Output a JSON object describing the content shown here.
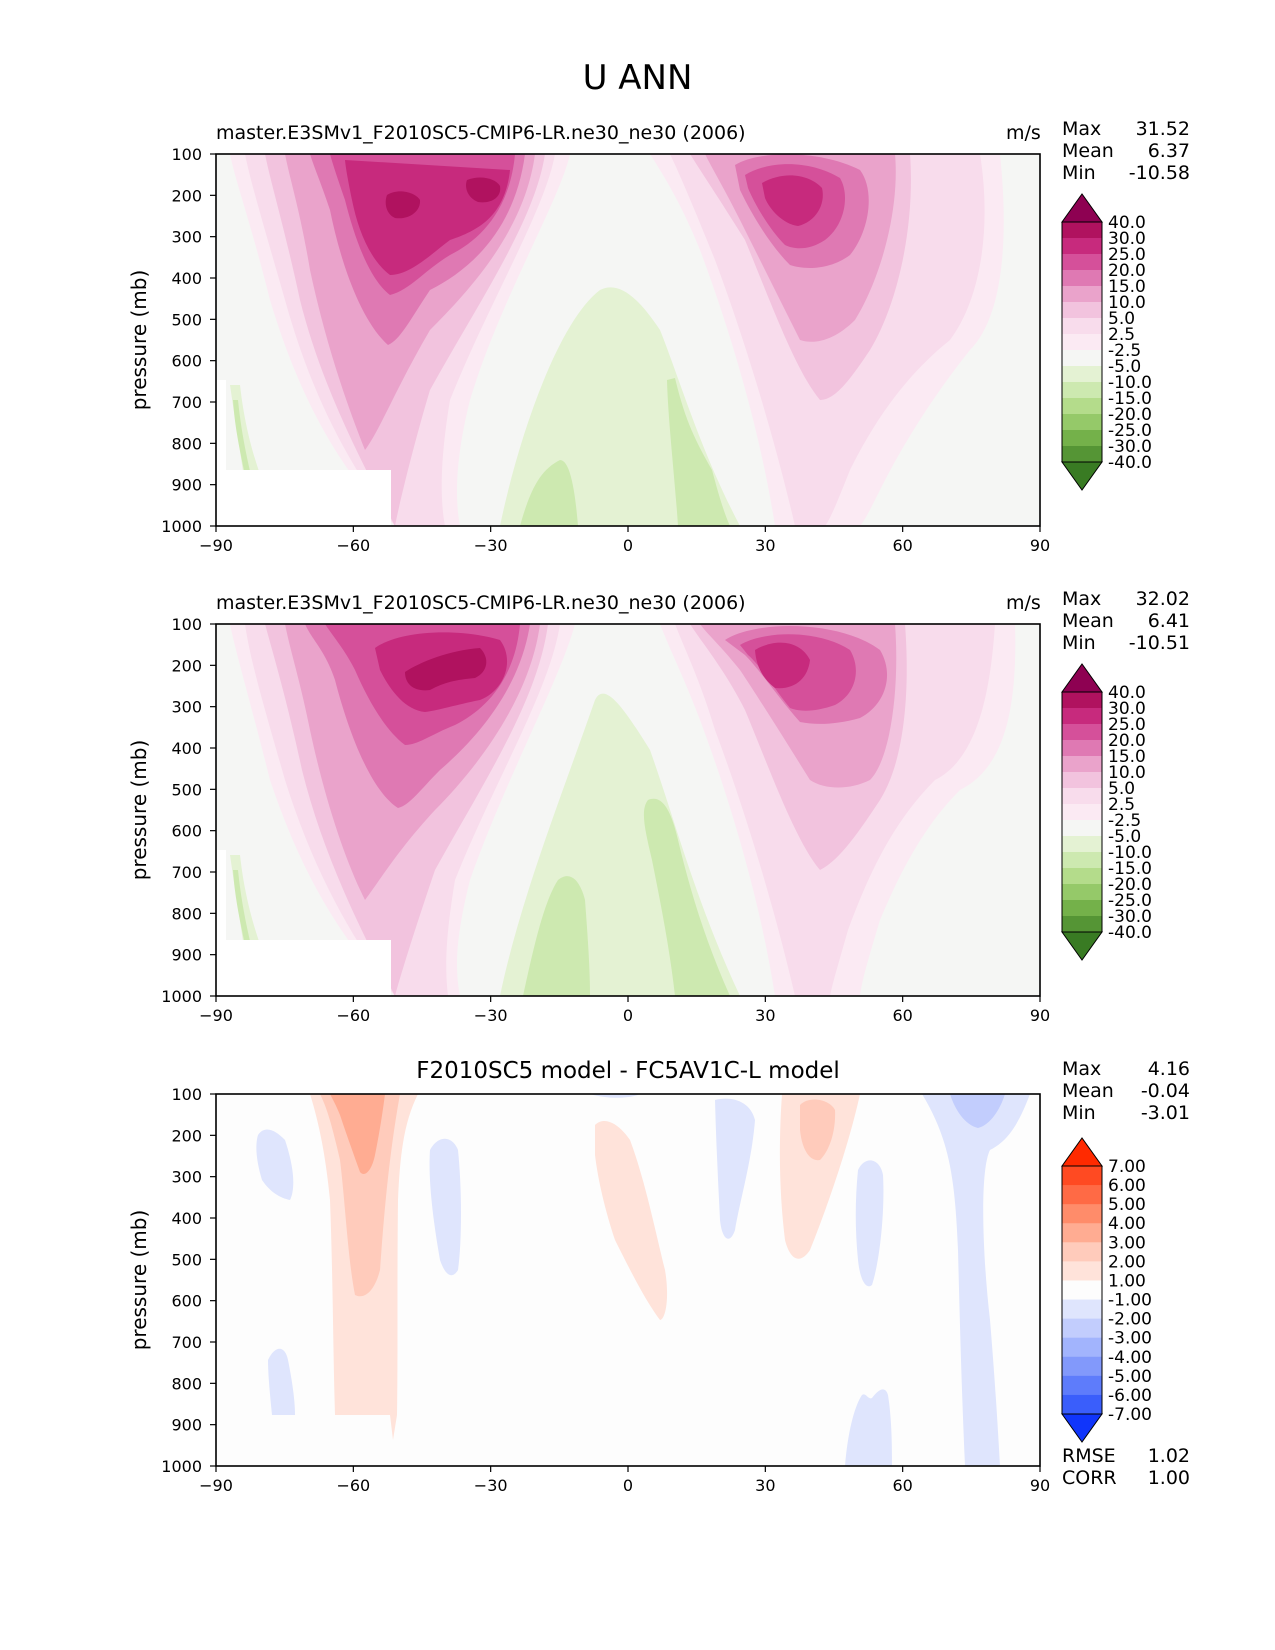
{
  "figure_title": "U ANN",
  "chart_data": [
    {
      "type": "contour",
      "title": "master.E3SMv1_F2010SC5-CMIP6-LR.ne30_ne30 (2006)",
      "units": "m/s",
      "ylabel": "pressure (mb)",
      "xlim": [
        -90,
        90
      ],
      "ylim": [
        1000,
        100
      ],
      "x_ticks": [
        "−90",
        "−60",
        "−30",
        "0",
        "30",
        "60",
        "90"
      ],
      "y_ticks": [
        "100",
        "200",
        "300",
        "400",
        "500",
        "600",
        "700",
        "800",
        "900",
        "1000"
      ],
      "stats": {
        "max_label": "Max",
        "max": "31.52",
        "mean_label": "Mean",
        "mean": "6.37",
        "min_label": "Min",
        "min": "-10.58"
      },
      "colorbar": {
        "levels": [
          "40.0",
          "30.0",
          "25.0",
          "20.0",
          "15.0",
          "10.0",
          "5.0",
          "2.5",
          "-2.5",
          "-5.0",
          "-10.0",
          "-15.0",
          "-20.0",
          "-25.0",
          "-30.0",
          "-40.0"
        ],
        "colors": [
          "#8e0152",
          "#b0125f",
          "#c72a7d",
          "#d5509a",
          "#df79b3",
          "#eaa3cb",
          "#f2c3de",
          "#f8dcec",
          "#fbeaf3",
          "#f5f6f4",
          "#e4f2d3",
          "#cde9b0",
          "#b4dc8b",
          "#95c969",
          "#74b14a",
          "#559535",
          "#397b23"
        ]
      },
      "jets": [
        {
          "lat": -48,
          "core_pressure": 220,
          "max": 31.5
        },
        {
          "lat": 37,
          "core_pressure": 230,
          "max": 29.0
        }
      ]
    },
    {
      "type": "contour",
      "title": "master.E3SMv1_F2010SC5-CMIP6-LR.ne30_ne30 (2006)",
      "units": "m/s",
      "ylabel": "pressure (mb)",
      "xlim": [
        -90,
        90
      ],
      "ylim": [
        1000,
        100
      ],
      "x_ticks": [
        "−90",
        "−60",
        "−30",
        "0",
        "30",
        "60",
        "90"
      ],
      "y_ticks": [
        "100",
        "200",
        "300",
        "400",
        "500",
        "600",
        "700",
        "800",
        "900",
        "1000"
      ],
      "stats": {
        "max_label": "Max",
        "max": "32.02",
        "mean_label": "Mean",
        "mean": "6.41",
        "min_label": "Min",
        "min": "-10.51"
      },
      "colorbar": {
        "levels": [
          "40.0",
          "30.0",
          "25.0",
          "20.0",
          "15.0",
          "10.0",
          "5.0",
          "2.5",
          "-2.5",
          "-5.0",
          "-10.0",
          "-15.0",
          "-20.0",
          "-25.0",
          "-30.0",
          "-40.0"
        ],
        "colors": [
          "#8e0152",
          "#b0125f",
          "#c72a7d",
          "#d5509a",
          "#df79b3",
          "#eaa3cb",
          "#f2c3de",
          "#f8dcec",
          "#fbeaf3",
          "#f5f6f4",
          "#e4f2d3",
          "#cde9b0",
          "#b4dc8b",
          "#95c969",
          "#74b14a",
          "#559535",
          "#397b23"
        ]
      },
      "jets": [
        {
          "lat": -46,
          "core_pressure": 210,
          "max": 32.0
        },
        {
          "lat": 34,
          "core_pressure": 220,
          "max": 29.5
        }
      ]
    },
    {
      "type": "contour",
      "title": "F2010SC5 model - FC5AV1C-L model",
      "units": "",
      "ylabel": "pressure (mb)",
      "xlim": [
        -90,
        90
      ],
      "ylim": [
        1000,
        100
      ],
      "x_ticks": [
        "−90",
        "−60",
        "−30",
        "0",
        "30",
        "60",
        "90"
      ],
      "y_ticks": [
        "100",
        "200",
        "300",
        "400",
        "500",
        "600",
        "700",
        "800",
        "900",
        "1000"
      ],
      "stats": {
        "max_label": "Max",
        "max": "4.16",
        "mean_label": "Mean",
        "mean": "-0.04",
        "min_label": "Min",
        "min": "-3.01"
      },
      "extra_stats": {
        "rmse_label": "RMSE",
        "rmse": "1.02",
        "corr_label": "CORR",
        "corr": "1.00"
      },
      "colorbar": {
        "levels": [
          "7.00",
          "6.00",
          "5.00",
          "4.00",
          "3.00",
          "2.00",
          "1.00",
          "-1.00",
          "-2.00",
          "-3.00",
          "-4.00",
          "-5.00",
          "-6.00",
          "-7.00"
        ],
        "colors": [
          "#ff2a00",
          "#ff4a22",
          "#ff6a45",
          "#ff8c6a",
          "#ffac92",
          "#ffcbbb",
          "#ffe3da",
          "#fdfdfd",
          "#dfe5fd",
          "#c2cdfd",
          "#a2b4fd",
          "#8299fb",
          "#5e7cfb",
          "#3a5efb",
          "#1035fb"
        ]
      }
    }
  ]
}
